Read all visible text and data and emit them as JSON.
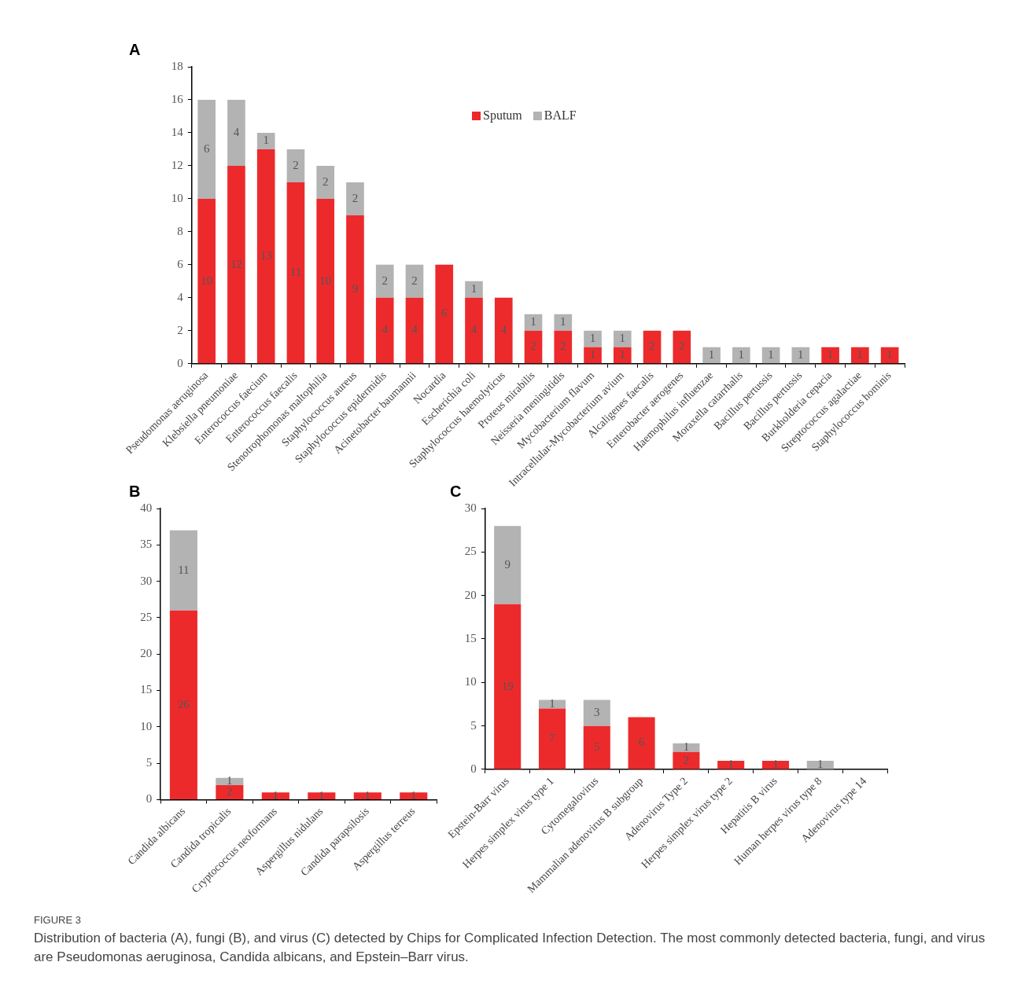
{
  "chart_data": [
    {
      "type": "bar",
      "title": "A",
      "stacked": true,
      "data_labels": true,
      "legend": "top",
      "grid": false,
      "categories": [
        "Pseudomonas aeruginosa",
        "Klebsiella pneumoniae",
        "Enterococcus faecium",
        "Enterococcus faecalis",
        "Stenotrophomonas maltophilia",
        "Staphylococcus aureus",
        "Staphylococcus epidermidis",
        "Acinetobacter baumannii",
        "Nocardia",
        "Escherichia coli",
        "Staphylococcus haemolyticus",
        "Proteus mirabilis",
        "Neisseria meningitidis",
        "Mycobacterium flavum",
        "Intracellular-Mycobacterium avium",
        "Alcaligenes faecalis",
        "Enterobacter aerogenes",
        "Haemophilus influenzae",
        "Moraxella catarrhalis",
        "Bacillus pertussis",
        "Bacillus pertussis",
        "Burkholderia cepacia",
        "Streptococcus agalactiae",
        "Staphylococcus hominis"
      ],
      "series": [
        {
          "name": "Sputum",
          "color": "#ec2a2c",
          "values": [
            10,
            12,
            13,
            11,
            10,
            9,
            4,
            4,
            6,
            4,
            4,
            2,
            2,
            1,
            1,
            2,
            2,
            null,
            null,
            null,
            null,
            1,
            1,
            1
          ]
        },
        {
          "name": "BALF",
          "color": "#b3b3b3",
          "values": [
            6,
            4,
            1,
            2,
            2,
            2,
            2,
            2,
            null,
            1,
            null,
            1,
            1,
            1,
            1,
            null,
            null,
            1,
            1,
            1,
            1,
            null,
            null,
            null
          ]
        }
      ],
      "ylim": [
        0,
        18
      ],
      "yticks": [
        0,
        2,
        4,
        6,
        8,
        10,
        12,
        14,
        16,
        18
      ],
      "annotations": [
        "FIGURE 3",
        "Distribution of bacteria (A), fungi (B), and virus (C) detected by Chips for Complicated Infection Detection. The most commonly detected bacteria, fungi, and virus are Pseudomonas aeruginosa, Candida albicans, and Epstein–Barr virus."
      ]
    },
    {
      "type": "bar",
      "title": "B",
      "stacked": true,
      "data_labels": true,
      "grid": false,
      "categories": [
        "Candida albicans",
        "Candida tropicalis",
        "Cryptococcus neoformans",
        "Aspergillus nidulans",
        "Candida parapsilosis",
        "Aspergillus terreus"
      ],
      "series": [
        {
          "color": "#ec2a2c",
          "values": [
            26,
            2,
            1,
            1,
            1,
            1
          ]
        },
        {
          "color": "#b3b3b3",
          "values": [
            11,
            1,
            null,
            null,
            null,
            null
          ]
        }
      ],
      "ylim": [
        0,
        40
      ],
      "yticks": [
        0,
        5,
        10,
        15,
        20,
        25,
        30,
        35,
        40
      ]
    },
    {
      "type": "bar",
      "title": "C",
      "stacked": true,
      "data_labels": true,
      "grid": false,
      "categories": [
        "Epstein-Barr virus",
        "Herpes simplex virus type 1",
        "Cytomegalovirus",
        "Mammalian adenovirus B subgroup",
        "Adenovirus Type 2",
        "Herpes simplex virus type 2",
        "Hepatitis B virus",
        "Human herpes virus type 8",
        "Adenovirus type 14"
      ],
      "series": [
        {
          "color": "#ec2a2c",
          "values": [
            19,
            7,
            5,
            6,
            2,
            1,
            1,
            null,
            null
          ]
        },
        {
          "color": "#b3b3b3",
          "values": [
            9,
            1,
            3,
            null,
            1,
            null,
            null,
            1,
            null
          ]
        }
      ],
      "ylim": [
        0,
        30
      ],
      "yticks": [
        0,
        5,
        10,
        15,
        20,
        25,
        30
      ]
    }
  ]
}
